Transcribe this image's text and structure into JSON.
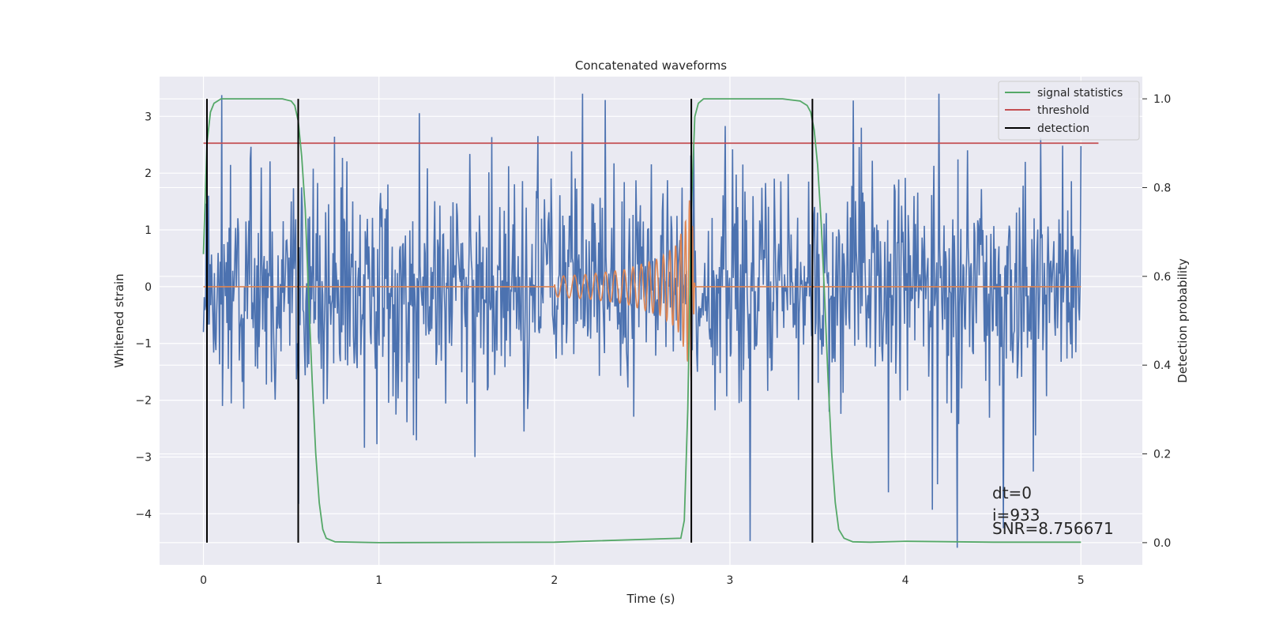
{
  "chart_data": {
    "type": "line",
    "title": "Concatenated waveforms",
    "xlabel": "Time (s)",
    "ylabel_left": "Whitened strain",
    "ylabel_right": "Detection probability",
    "xlim": [
      -0.25,
      5.35
    ],
    "ylim_left": [
      -4.9,
      3.7
    ],
    "ylim_right": [
      -0.05,
      1.05
    ],
    "xticks": [
      0,
      1,
      2,
      3,
      4,
      5
    ],
    "yticks_left": [
      3,
      2,
      1,
      0,
      -1,
      -2,
      -3,
      -4
    ],
    "yticks_right": [
      1.0,
      0.8,
      0.6,
      0.4,
      0.2,
      0.0
    ],
    "grid": true,
    "legend_position": "top-right",
    "legend": [
      {
        "key": "signal",
        "label": "signal statistics",
        "color": "#55a868"
      },
      {
        "key": "threshold",
        "label": "threshold",
        "color": "#c44e52"
      },
      {
        "key": "detection",
        "label": "detection",
        "color": "#000000"
      }
    ],
    "series": [
      {
        "key": "noise",
        "axis": "left",
        "color": "#4c72b0",
        "x_range": [
          0,
          5
        ],
        "sample_count": 1200,
        "amplitude_range": [
          -4.6,
          3.4
        ]
      },
      {
        "key": "waveform",
        "axis": "left",
        "color": "#dd8452",
        "x": [
          0,
          2.0,
          2.2,
          2.4,
          2.6,
          2.7,
          2.75,
          2.78,
          2.8,
          5.0
        ],
        "amplitude": [
          0,
          0.18,
          0.22,
          0.3,
          0.5,
          0.75,
          1.2,
          1.7,
          0,
          0
        ]
      },
      {
        "key": "signal",
        "axis": "right",
        "color": "#55a868",
        "x": [
          0.0,
          0.02,
          0.04,
          0.06,
          0.1,
          0.15,
          0.3,
          0.45,
          0.5,
          0.52,
          0.54,
          0.56,
          0.58,
          0.6,
          0.62,
          0.64,
          0.66,
          0.68,
          0.7,
          0.75,
          1.0,
          2.0,
          2.72,
          2.74,
          2.76,
          2.78,
          2.8,
          2.82,
          2.85,
          2.9,
          3.0,
          3.3,
          3.4,
          3.44,
          3.46,
          3.48,
          3.5,
          3.52,
          3.54,
          3.56,
          3.58,
          3.6,
          3.62,
          3.65,
          3.7,
          3.8,
          4.0,
          4.5,
          5.0
        ],
        "y": [
          0.65,
          0.9,
          0.97,
          0.99,
          1.0,
          1.0,
          1.0,
          1.0,
          0.995,
          0.985,
          0.95,
          0.87,
          0.75,
          0.55,
          0.36,
          0.2,
          0.09,
          0.03,
          0.01,
          0.002,
          0.0,
          0.001,
          0.01,
          0.05,
          0.3,
          0.75,
          0.96,
          0.99,
          1.0,
          1.0,
          1.0,
          1.0,
          0.995,
          0.985,
          0.97,
          0.93,
          0.85,
          0.72,
          0.55,
          0.36,
          0.2,
          0.09,
          0.03,
          0.01,
          0.002,
          0.001,
          0.003,
          0.001,
          0.001
        ]
      },
      {
        "key": "threshold",
        "axis": "right",
        "color": "#c44e52",
        "x": [
          0.0,
          5.1
        ],
        "y": [
          0.9,
          0.9
        ]
      },
      {
        "key": "detection",
        "axis": "right",
        "color": "#000000",
        "vlines": [
          0.02,
          0.54,
          2.78,
          3.47
        ],
        "y": [
          0.0,
          1.0
        ]
      }
    ],
    "annotations": [
      "dt=0",
      "i=933",
      "SNR=8.756671"
    ]
  }
}
